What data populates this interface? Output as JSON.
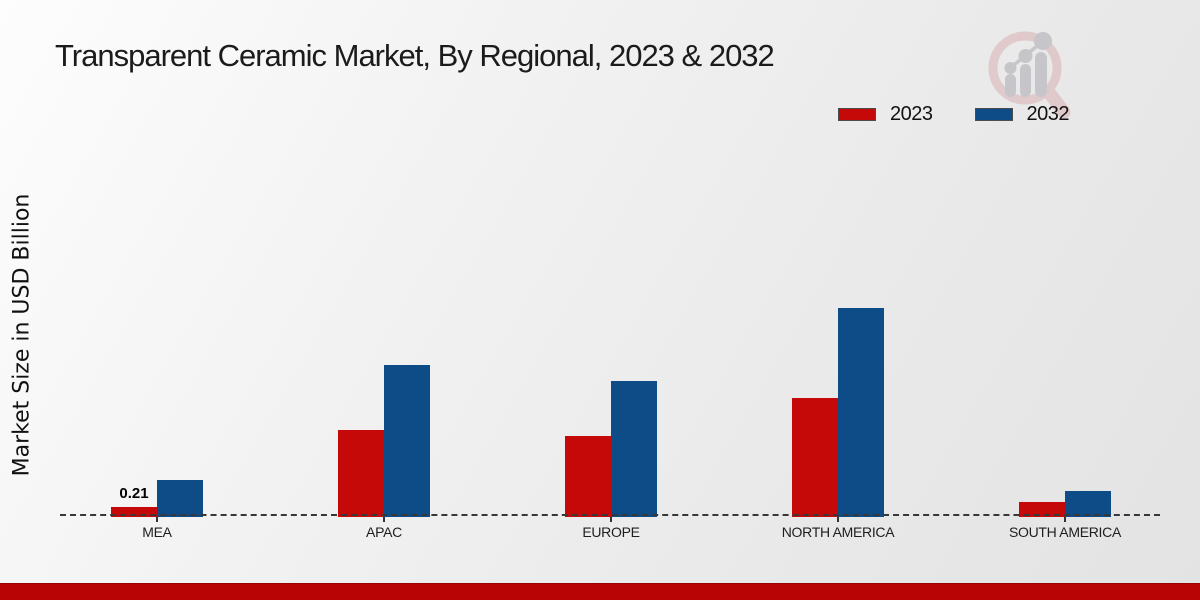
{
  "header": {
    "title": "Transparent Ceramic Market, By Regional, 2023 & 2032"
  },
  "chart_data": {
    "type": "bar",
    "title": "Transparent Ceramic Market, By Regional, 2023 & 2032",
    "xlabel": "",
    "ylabel": "Market Size in USD Billion",
    "categories": [
      "MEA",
      "APAC",
      "EUROPE",
      "NORTH AMERICA",
      "SOUTH AMERICA"
    ],
    "series": [
      {
        "name": "2023",
        "color": "#c50808",
        "values": [
          0.21,
          1.83,
          1.7,
          2.5,
          0.32
        ]
      },
      {
        "name": "2032",
        "color": "#0d4c86",
        "values": [
          0.78,
          3.21,
          2.86,
          4.39,
          0.55
        ]
      }
    ],
    "data_labels": [
      {
        "series_index": 0,
        "category_index": 0,
        "text": "0.21"
      }
    ],
    "baseline_style": "dashed",
    "grid": false,
    "legend_position": "top-right",
    "ylim": [
      0,
      5
    ]
  },
  "legend": {
    "items": [
      {
        "label": "2023",
        "color": "#c50808"
      },
      {
        "label": "2032",
        "color": "#0d4c86"
      }
    ]
  },
  "branding": {
    "logo_icon": "magnifier-bar-chart-logo",
    "ring_color": "#debfc1",
    "bar_color": "#c5c5c9"
  },
  "footer": {
    "bar_color": "#b80404"
  }
}
